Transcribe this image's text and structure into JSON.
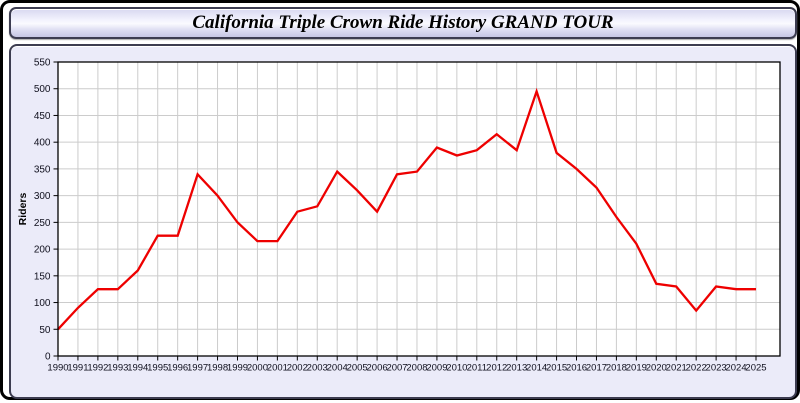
{
  "header": {
    "title": "California Triple Crown Ride History GRAND TOUR"
  },
  "chart_data": {
    "type": "line",
    "title": "California Triple Crown Ride History GRAND TOUR",
    "xlabel": "",
    "ylabel": "Riders",
    "x": [
      1990,
      1991,
      1992,
      1993,
      1994,
      1995,
      1996,
      1997,
      1998,
      1999,
      2000,
      2001,
      2002,
      2003,
      2004,
      2005,
      2006,
      2007,
      2008,
      2009,
      2010,
      2011,
      2012,
      2013,
      2014,
      2015,
      2016,
      2017,
      2018,
      2019,
      2020,
      2021,
      2022,
      2023,
      2024,
      2025
    ],
    "series": [
      {
        "name": "Riders",
        "color": "#ee0000",
        "values": [
          50,
          90,
          125,
          125,
          160,
          225,
          225,
          340,
          300,
          250,
          215,
          215,
          270,
          280,
          345,
          310,
          270,
          340,
          345,
          390,
          375,
          385,
          415,
          385,
          495,
          380,
          350,
          315,
          260,
          210,
          135,
          130,
          85,
          130,
          125,
          125
        ]
      }
    ],
    "ylim": [
      0,
      550
    ],
    "ytick_step": 50,
    "grid": true,
    "legend": false,
    "grid_color": "#cccccc",
    "plot_bg": "#ffffff",
    "axis_color": "#000000",
    "label_color": "#10101e"
  }
}
